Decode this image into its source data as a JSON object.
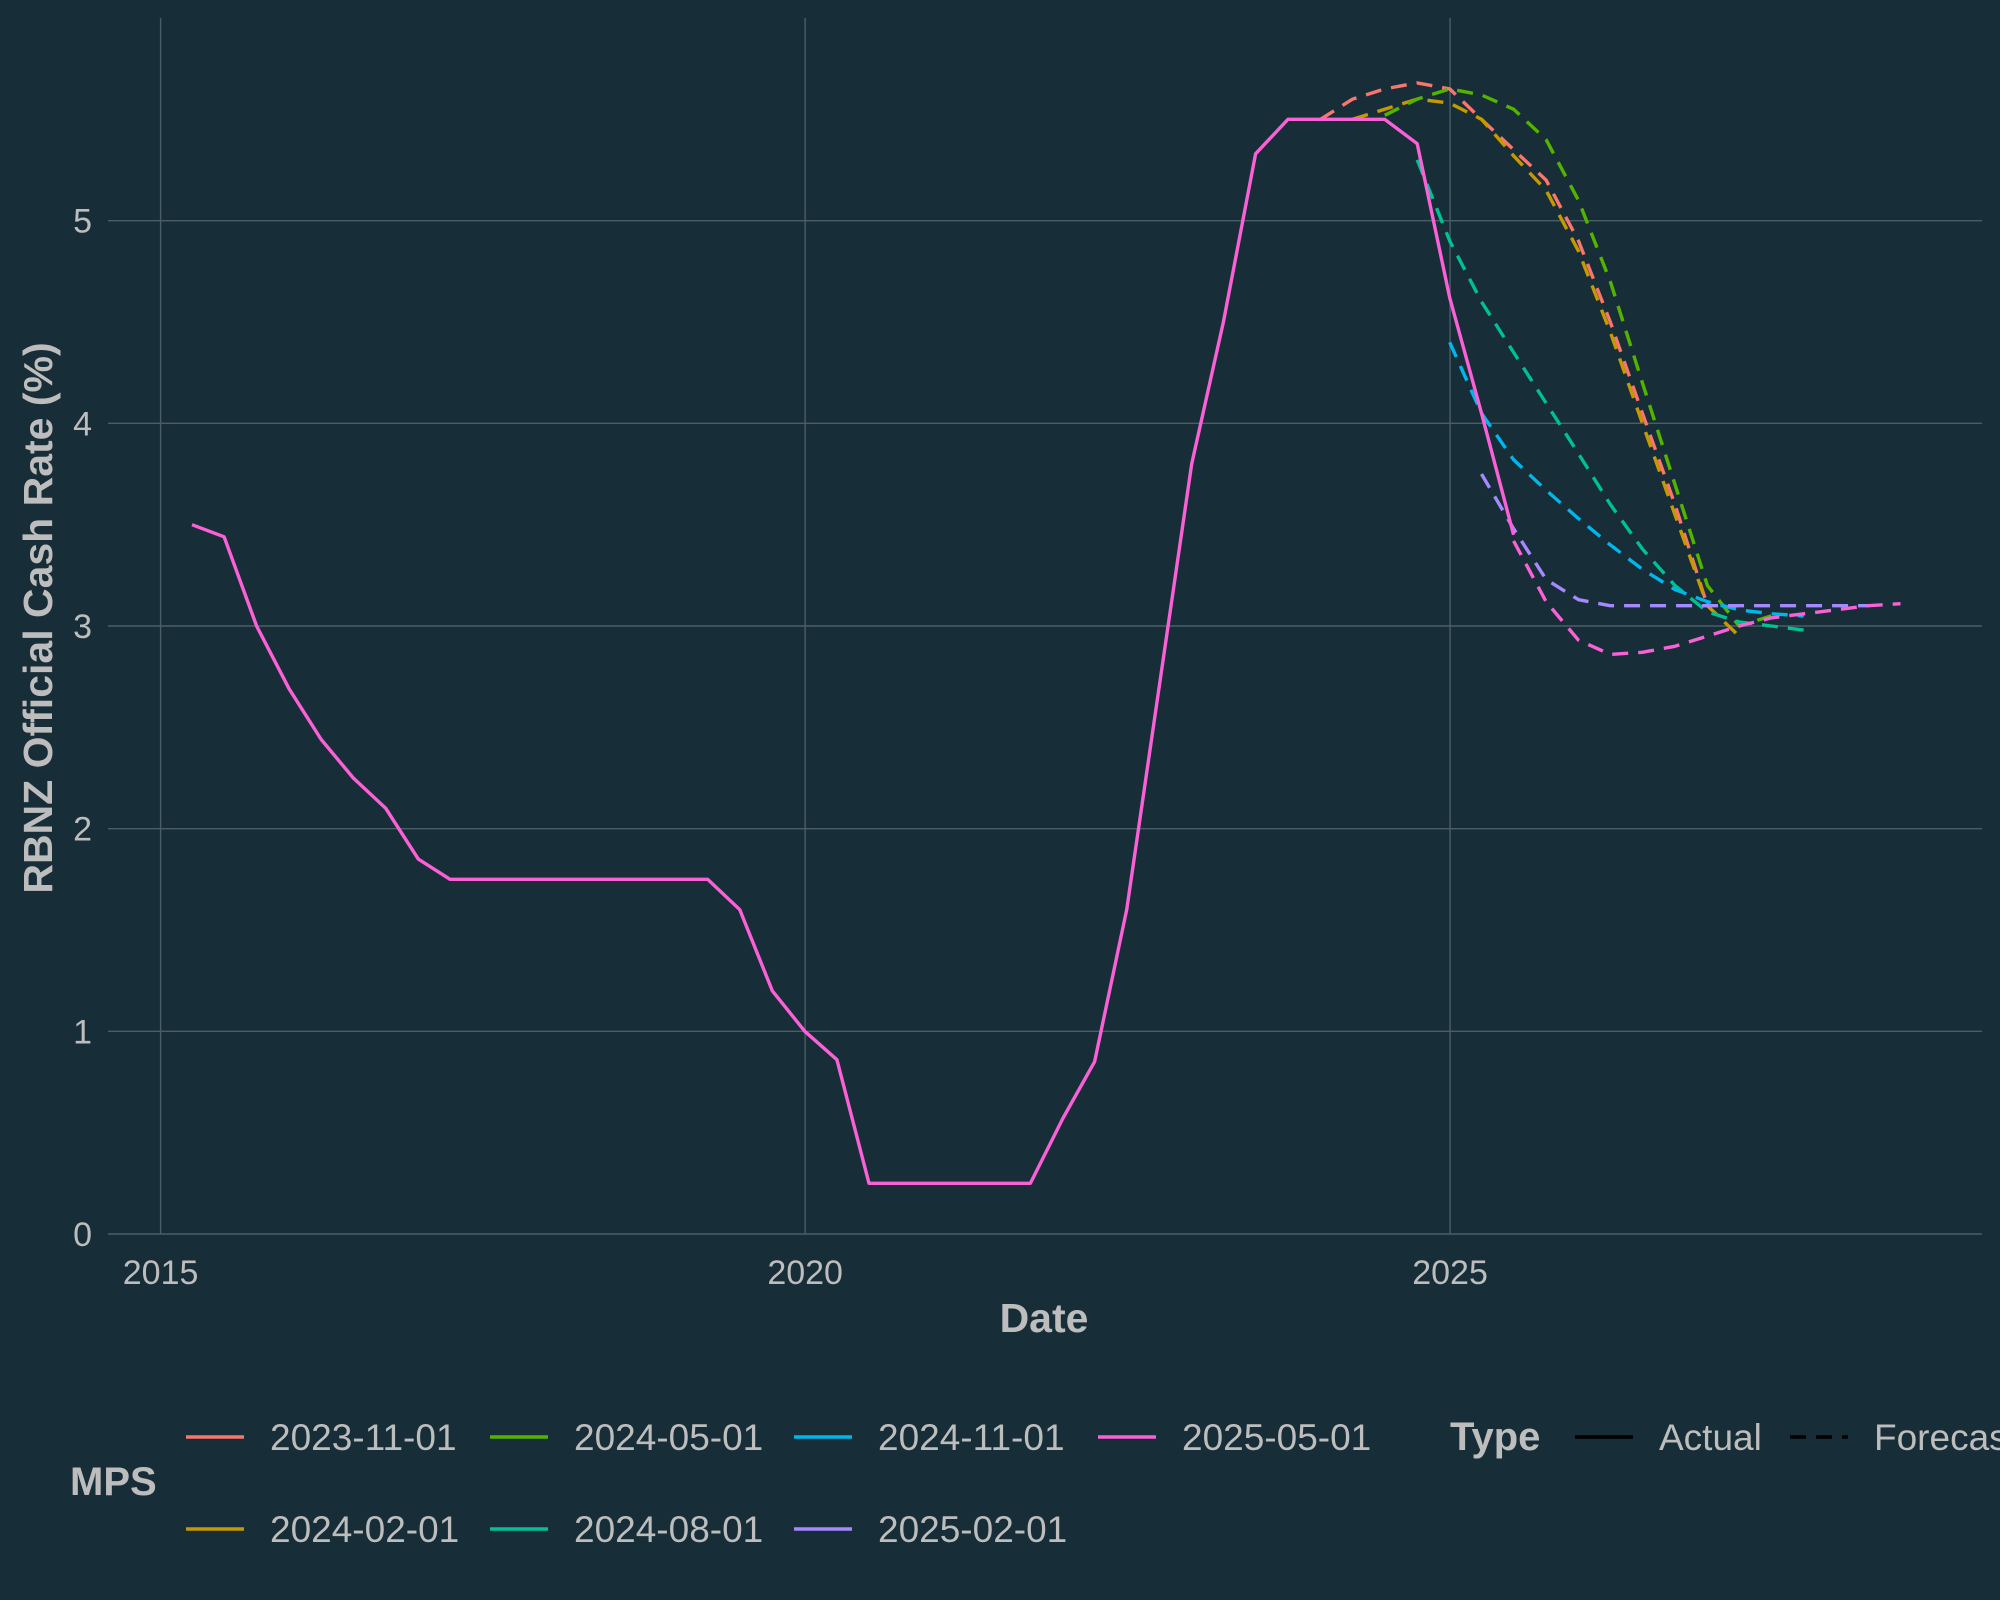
{
  "chart_data": {
    "type": "line",
    "title": "",
    "xlabel": "Date",
    "ylabel": "RBNZ Official Cash Rate (%)",
    "xlim": [
      "2014-08-05",
      "2029-02-16"
    ],
    "ylim": [
      0,
      6
    ],
    "x_ticks": [
      "2015-01-01",
      "2020-01-01",
      "2025-01-01"
    ],
    "x_tick_labels": [
      "2015",
      "2020",
      "2025"
    ],
    "y_ticks": [
      0,
      1,
      2,
      3,
      4,
      5
    ],
    "y_tick_labels": [
      "0",
      "1",
      "2",
      "3",
      "4",
      "5"
    ],
    "grid": true,
    "legend_position": "bottom",
    "legend_mps_title": "MPS",
    "legend_type_title": "Type",
    "type_legend": [
      {
        "label": "Actual",
        "dash": "solid"
      },
      {
        "label": "Forecast",
        "dash": "dashed"
      }
    ],
    "series": [
      {
        "name": "2023-11-01",
        "color": "#f8766d",
        "type": "Forecast",
        "x": [
          "2023-12-31",
          "2024-03-31",
          "2024-06-30",
          "2024-09-30",
          "2024-12-31",
          "2025-03-31",
          "2025-06-30",
          "2025-09-30",
          "2025-12-31",
          "2026-03-31",
          "2026-06-30",
          "2026-09-30",
          "2026-12-31"
        ],
        "y": [
          5.5,
          5.6,
          5.65,
          5.68,
          5.65,
          5.5,
          5.35,
          5.2,
          4.9,
          4.5,
          4.05,
          3.6,
          3.1
        ]
      },
      {
        "name": "2024-02-01",
        "color": "#c49a00",
        "type": "Forecast",
        "x": [
          "2024-03-31",
          "2024-06-30",
          "2024-09-30",
          "2024-12-31",
          "2025-03-31",
          "2025-06-30",
          "2025-09-30",
          "2025-12-31",
          "2026-03-31",
          "2026-06-30",
          "2026-09-30",
          "2026-12-31",
          "2027-03-31"
        ],
        "y": [
          5.5,
          5.55,
          5.6,
          5.58,
          5.5,
          5.32,
          5.15,
          4.85,
          4.45,
          4.0,
          3.55,
          3.1,
          2.95
        ]
      },
      {
        "name": "2024-05-01",
        "color": "#53b400",
        "type": "Forecast",
        "x": [
          "2024-06-30",
          "2024-09-30",
          "2024-12-31",
          "2025-03-31",
          "2025-06-30",
          "2025-09-30",
          "2025-12-31",
          "2026-03-31",
          "2026-06-30",
          "2026-09-30",
          "2026-12-31",
          "2027-03-31",
          "2027-06-30"
        ],
        "y": [
          5.52,
          5.6,
          5.65,
          5.62,
          5.55,
          5.4,
          5.1,
          4.7,
          4.2,
          3.7,
          3.2,
          3.0,
          3.05
        ]
      },
      {
        "name": "2024-08-01",
        "color": "#00c094",
        "type": "Forecast",
        "x": [
          "2024-09-30",
          "2024-12-31",
          "2025-03-31",
          "2025-06-30",
          "2025-09-30",
          "2025-12-31",
          "2026-03-31",
          "2026-06-30",
          "2026-09-30",
          "2026-12-31",
          "2027-03-31",
          "2027-06-30",
          "2027-09-30"
        ],
        "y": [
          5.3,
          4.9,
          4.6,
          4.35,
          4.1,
          3.85,
          3.6,
          3.38,
          3.2,
          3.07,
          3.02,
          3.0,
          2.98
        ]
      },
      {
        "name": "2024-11-01",
        "color": "#00b6eb",
        "type": "Forecast",
        "x": [
          "2024-12-31",
          "2025-03-31",
          "2025-06-30",
          "2025-09-30",
          "2025-12-31",
          "2026-03-31",
          "2026-06-30",
          "2026-09-30",
          "2026-12-31",
          "2027-03-31",
          "2027-06-30",
          "2027-09-30"
        ],
        "y": [
          4.4,
          4.05,
          3.82,
          3.67,
          3.53,
          3.4,
          3.28,
          3.18,
          3.12,
          3.08,
          3.06,
          3.05
        ]
      },
      {
        "name": "2025-02-01",
        "color": "#a58aff",
        "type": "Forecast",
        "x": [
          "2025-03-31",
          "2025-06-30",
          "2025-09-30",
          "2025-12-31",
          "2026-03-31",
          "2026-06-30",
          "2026-09-30",
          "2026-12-31",
          "2027-03-31",
          "2027-06-30",
          "2027-09-30",
          "2027-12-31",
          "2028-03-31"
        ],
        "y": [
          3.75,
          3.48,
          3.23,
          3.13,
          3.1,
          3.1,
          3.1,
          3.1,
          3.1,
          3.1,
          3.1,
          3.1,
          3.1
        ]
      },
      {
        "name": "2025-05-01",
        "color": "#fb61d7",
        "type": "Forecast",
        "x": [
          "2025-06-30",
          "2025-09-30",
          "2025-12-31",
          "2026-03-31",
          "2026-06-30",
          "2026-09-30",
          "2026-12-31",
          "2027-03-31",
          "2027-06-30",
          "2027-09-30",
          "2027-12-31",
          "2028-03-31",
          "2028-06-30"
        ],
        "y": [
          3.42,
          3.12,
          2.93,
          2.86,
          2.87,
          2.9,
          2.95,
          3.0,
          3.04,
          3.06,
          3.08,
          3.1,
          3.11
        ]
      },
      {
        "name": "2025-05-01",
        "color": "#fb61d7",
        "type": "Actual",
        "x": [
          "2015-03-31",
          "2015-06-30",
          "2015-09-30",
          "2015-12-31",
          "2016-03-31",
          "2016-06-30",
          "2016-09-30",
          "2016-12-31",
          "2017-03-31",
          "2017-06-30",
          "2017-09-30",
          "2017-12-31",
          "2018-03-31",
          "2018-06-30",
          "2018-09-30",
          "2018-12-31",
          "2019-03-31",
          "2019-06-30",
          "2019-09-30",
          "2019-12-31",
          "2020-03-31",
          "2020-06-30",
          "2020-09-30",
          "2020-12-31",
          "2021-03-31",
          "2021-06-30",
          "2021-09-30",
          "2021-12-31",
          "2022-03-31",
          "2022-06-30",
          "2022-09-30",
          "2022-12-31",
          "2023-03-31",
          "2023-06-30",
          "2023-09-30",
          "2023-12-31",
          "2024-03-31",
          "2024-06-30",
          "2024-09-30",
          "2024-12-31",
          "2025-03-31",
          "2025-06-30"
        ],
        "y": [
          3.5,
          3.44,
          3.0,
          2.69,
          2.44,
          2.25,
          2.1,
          1.85,
          1.75,
          1.75,
          1.75,
          1.75,
          1.75,
          1.75,
          1.75,
          1.75,
          1.75,
          1.6,
          1.2,
          1.0,
          0.86,
          0.25,
          0.25,
          0.25,
          0.25,
          0.25,
          0.25,
          0.57,
          0.85,
          1.6,
          2.7,
          3.8,
          4.5,
          5.33,
          5.5,
          5.5,
          5.5,
          5.5,
          5.38,
          4.62,
          4.05,
          3.45
        ]
      }
    ]
  },
  "legend_items": [
    {
      "label": "2023-11-01",
      "color": "#f8766d"
    },
    {
      "label": "2024-02-01",
      "color": "#c49a00"
    },
    {
      "label": "2024-05-01",
      "color": "#53b400"
    },
    {
      "label": "2024-08-01",
      "color": "#00c094"
    },
    {
      "label": "2024-11-01",
      "color": "#00b6eb"
    },
    {
      "label": "2025-02-01",
      "color": "#a58aff"
    },
    {
      "label": "2025-05-01",
      "color": "#fb61d7"
    }
  ]
}
